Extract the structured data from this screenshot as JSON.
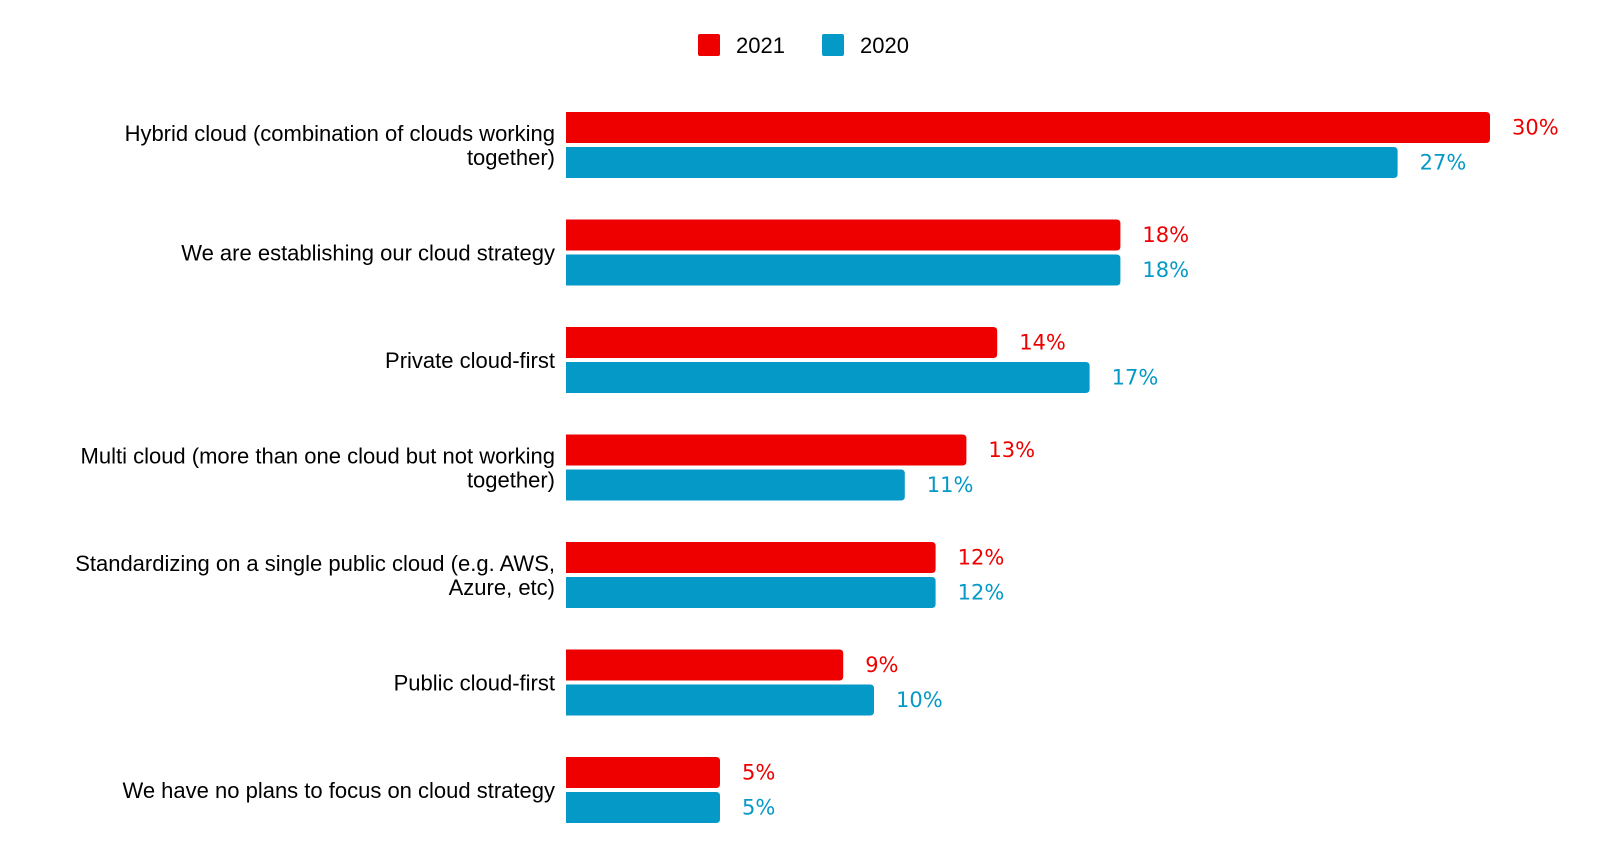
{
  "chart_data": {
    "type": "bar",
    "orientation": "horizontal",
    "title": "",
    "xlabel": "",
    "ylabel": "",
    "categories": [
      [
        "Hybrid cloud (combination of clouds working",
        "together)"
      ],
      [
        "We are establishing our cloud strategy"
      ],
      [
        "Private cloud-first"
      ],
      [
        "Multi cloud (more than one cloud but not working",
        "together)"
      ],
      [
        "Standardizing on a single public cloud (e.g. AWS,",
        "Azure, etc)"
      ],
      [
        "Public cloud-first"
      ],
      [
        "We have no plans to focus on cloud strategy"
      ]
    ],
    "series": [
      {
        "name": "2021",
        "color": "#ee0000",
        "values": [
          30,
          18,
          14,
          13,
          12,
          9,
          5
        ],
        "labels": [
          "30%",
          "18%",
          "14%",
          "13%",
          "12%",
          "9%",
          "5%"
        ]
      },
      {
        "name": "2020",
        "color": "#0599c7",
        "values": [
          27,
          18,
          17,
          11,
          12,
          10,
          5
        ],
        "labels": [
          "27%",
          "18%",
          "17%",
          "11%",
          "12%",
          "10%",
          "5%"
        ]
      }
    ],
    "legend_position": "top-center",
    "grid": false,
    "axis_visible": false
  }
}
